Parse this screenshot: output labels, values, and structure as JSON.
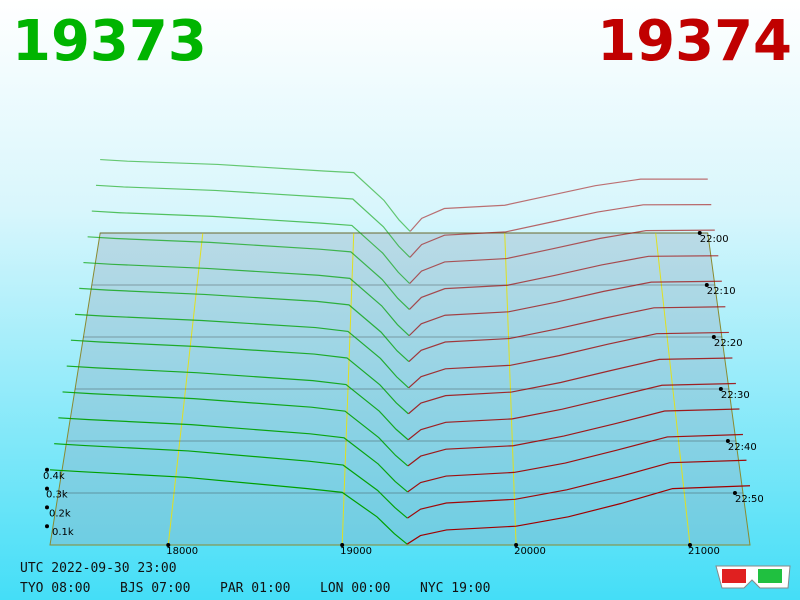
{
  "chart_data": {
    "type": "depth3d",
    "best_bid": 19373,
    "best_ask": 19374,
    "bid_color": "#00a000",
    "ask_color": "#a00000",
    "title_bid_color": "#00b400",
    "title_ask_color": "#c00000",
    "xlim": [
      17320,
      21345
    ],
    "xticks": [
      18000,
      19000,
      20000,
      21000
    ],
    "ylim": [
      0,
      500
    ],
    "yticks": [
      {
        "value": 100,
        "label": "0.1k"
      },
      {
        "value": 200,
        "label": "0.2k"
      },
      {
        "value": 300,
        "label": "0.3k"
      },
      {
        "value": 400,
        "label": "0.4k"
      }
    ],
    "zticks": [
      "22:00",
      "22:10",
      "22:20",
      "22:30",
      "22:40",
      "22:50"
    ],
    "grid": true,
    "bid_prices": [
      17320,
      17500,
      18100,
      18800,
      19000,
      19200,
      19300,
      19373
    ],
    "ask_prices": [
      19374,
      19450,
      19600,
      20000,
      20300,
      20600,
      20900,
      21345
    ],
    "snapshots": [
      {
        "time": "22:00",
        "bids": [
          450,
          440,
          420,
          380,
          370,
          200,
          80,
          10
        ],
        "asks": [
          10,
          90,
          150,
          170,
          230,
          290,
          330,
          330
        ]
      },
      {
        "time": "22:05",
        "bids": [
          446,
          436,
          415,
          375,
          363,
          195,
          78,
          10
        ],
        "asks": [
          10,
          87,
          144,
          164,
          224,
          284,
          328,
          329
        ]
      },
      {
        "time": "22:10",
        "bids": [
          442,
          432,
          410,
          370,
          356,
          190,
          76,
          9
        ],
        "asks": [
          9,
          83,
          138,
          158,
          217,
          278,
          325,
          328
        ]
      },
      {
        "time": "22:15",
        "bids": [
          438,
          428,
          405,
          365,
          349,
          186,
          74,
          9
        ],
        "asks": [
          9,
          80,
          132,
          152,
          210,
          272,
          323,
          326
        ]
      },
      {
        "time": "22:20",
        "bids": [
          434,
          424,
          400,
          360,
          342,
          182,
          72,
          8
        ],
        "asks": [
          8,
          77,
          127,
          147,
          203,
          266,
          320,
          325
        ]
      },
      {
        "time": "22:25",
        "bids": [
          430,
          420,
          395,
          355,
          335,
          178,
          70,
          8
        ],
        "asks": [
          8,
          73,
          121,
          141,
          197,
          260,
          318,
          324
        ]
      },
      {
        "time": "22:30",
        "bids": [
          425,
          415,
          390,
          350,
          328,
          174,
          69,
          7
        ],
        "asks": [
          7,
          70,
          115,
          135,
          190,
          255,
          315,
          322
        ]
      },
      {
        "time": "22:35",
        "bids": [
          421,
          411,
          385,
          343,
          321,
          170,
          68,
          7
        ],
        "asks": [
          7,
          67,
          109,
          129,
          183,
          249,
          313,
          321
        ]
      },
      {
        "time": "22:40",
        "bids": [
          417,
          407,
          380,
          336,
          314,
          166,
          66,
          7
        ],
        "asks": [
          7,
          63,
          104,
          123,
          177,
          243,
          310,
          320
        ]
      },
      {
        "time": "22:45",
        "bids": [
          413,
          403,
          376,
          329,
          307,
          162,
          64,
          6
        ],
        "asks": [
          6,
          60,
          98,
          117,
          170,
          237,
          308,
          319
        ]
      },
      {
        "time": "22:50",
        "bids": [
          409,
          399,
          372,
          322,
          300,
          158,
          63,
          6
        ],
        "asks": [
          6,
          57,
          92,
          112,
          163,
          232,
          305,
          318
        ]
      },
      {
        "time": "22:55",
        "bids": [
          405,
          395,
          366,
          311,
          290,
          154,
          62,
          5
        ],
        "asks": [
          5,
          53,
          86,
          106,
          157,
          226,
          303,
          316
        ]
      },
      {
        "time": "23:00",
        "bids": [
          400,
          390,
          360,
          300,
          280,
          150,
          60,
          5
        ],
        "asks": [
          5,
          50,
          80,
          100,
          150,
          220,
          300,
          315
        ]
      }
    ],
    "utc": "UTC 2022-09-30 23:00",
    "clocks": [
      "TYO 08:00",
      "BJS 07:00",
      "PAR 01:00",
      "LON 00:00",
      "NYC 19:00"
    ]
  }
}
